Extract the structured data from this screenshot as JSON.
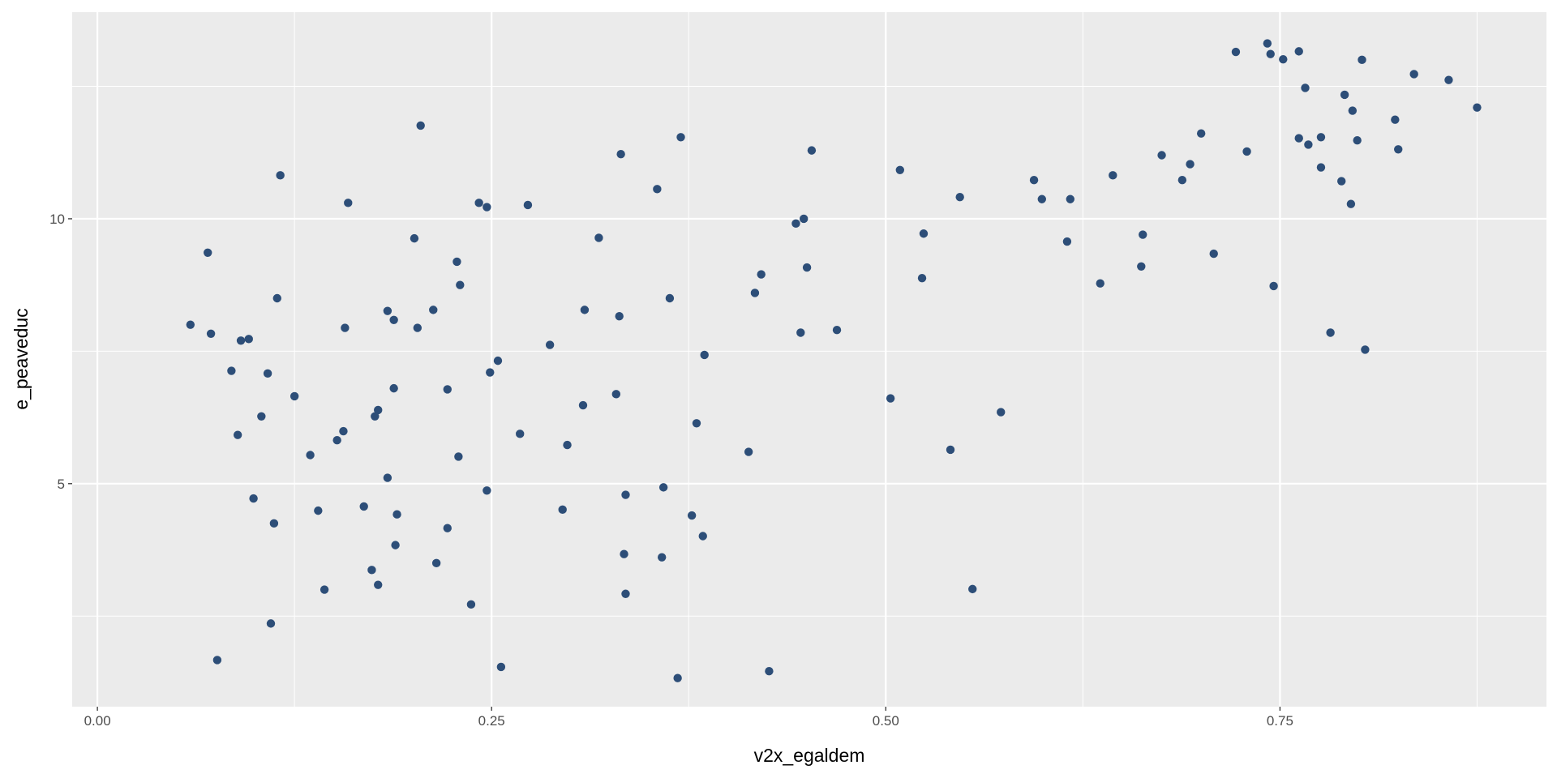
{
  "chart_data": {
    "type": "scatter",
    "x_label": "v2x_egaldem",
    "y_label": "e_peaveduc",
    "color": "#2d4e78",
    "panel_color": "#ebebeb",
    "grid": true,
    "xlim": [
      -0.016,
      0.919
    ],
    "ylim": [
      0.79,
      13.9
    ],
    "xticks": [
      {
        "value": 0,
        "label": "0.00"
      },
      0.25,
      {
        "value": 0.5,
        "label": "0.50"
      },
      0.75
    ],
    "yticks": [
      5,
      10
    ],
    "x_minor_breaks": [
      0.125,
      0.375,
      0.625,
      0.875
    ],
    "y_minor_breaks": [
      2.5,
      7.5,
      12.5
    ],
    "x": [
      0.059,
      0.07,
      0.072,
      0.076,
      0.085,
      0.089,
      0.091,
      0.096,
      0.099,
      0.104,
      0.108,
      0.11,
      0.112,
      0.114,
      0.116,
      0.125,
      0.135,
      0.14,
      0.144,
      0.152,
      0.156,
      0.157,
      0.159,
      0.169,
      0.174,
      0.176,
      0.178,
      0.178,
      0.184,
      0.184,
      0.188,
      0.188,
      0.189,
      0.19,
      0.201,
      0.203,
      0.205,
      0.213,
      0.215,
      0.222,
      0.222,
      0.228,
      0.229,
      0.23,
      0.237,
      0.242,
      0.247,
      0.247,
      0.249,
      0.254,
      0.256,
      0.268,
      0.273,
      0.287,
      0.295,
      0.298,
      0.308,
      0.309,
      0.318,
      0.329,
      0.331,
      0.332,
      0.334,
      0.335,
      0.335,
      0.355,
      0.358,
      0.359,
      0.363,
      0.368,
      0.37,
      0.377,
      0.38,
      0.384,
      0.385,
      0.413,
      0.417,
      0.421,
      0.426,
      0.443,
      0.446,
      0.448,
      0.45,
      0.453,
      0.469,
      0.503,
      0.509,
      0.523,
      0.524,
      0.541,
      0.547,
      0.555,
      0.573,
      0.594,
      0.599,
      0.615,
      0.617,
      0.636,
      0.644,
      0.662,
      0.663,
      0.675,
      0.688,
      0.693,
      0.7,
      0.708,
      0.722,
      0.729,
      0.742,
      0.744,
      0.746,
      0.752,
      0.762,
      0.762,
      0.766,
      0.768,
      0.776,
      0.776,
      0.782,
      0.789,
      0.791,
      0.795,
      0.796,
      0.799,
      0.802,
      0.804,
      0.823,
      0.825,
      0.835,
      0.857,
      0.875
    ],
    "values": [
      8.0,
      9.36,
      7.83,
      1.67,
      7.13,
      5.92,
      7.7,
      7.73,
      4.72,
      6.27,
      7.08,
      2.36,
      4.25,
      8.5,
      10.82,
      6.65,
      5.54,
      4.49,
      3.0,
      5.82,
      5.99,
      7.94,
      10.3,
      4.57,
      3.37,
      6.27,
      6.39,
      3.09,
      8.26,
      5.11,
      8.09,
      6.8,
      3.84,
      4.42,
      9.63,
      7.94,
      11.76,
      8.28,
      3.5,
      6.78,
      4.16,
      9.19,
      5.51,
      8.75,
      2.72,
      10.3,
      4.87,
      10.22,
      7.1,
      7.32,
      1.54,
      5.94,
      10.26,
      7.62,
      4.51,
      5.73,
      6.48,
      8.28,
      9.64,
      6.69,
      8.16,
      11.22,
      3.67,
      4.79,
      2.92,
      10.56,
      3.61,
      4.93,
      8.5,
      1.33,
      11.54,
      4.4,
      6.14,
      4.01,
      7.43,
      5.6,
      8.6,
      8.95,
      1.46,
      9.91,
      7.85,
      10.0,
      9.08,
      11.29,
      7.9,
      6.61,
      10.92,
      8.88,
      9.72,
      5.64,
      10.41,
      3.01,
      6.35,
      10.73,
      10.37,
      9.57,
      10.37,
      8.78,
      10.82,
      9.1,
      9.7,
      11.2,
      10.73,
      11.03,
      11.61,
      9.34,
      13.15,
      11.27,
      13.31,
      13.11,
      8.73,
      13.01,
      13.16,
      11.52,
      12.47,
      11.4,
      11.54,
      10.97,
      7.85,
      10.71,
      12.34,
      10.28,
      12.04,
      11.48,
      13.0,
      7.53,
      11.87,
      11.31,
      12.73,
      12.62,
      12.1
    ]
  }
}
